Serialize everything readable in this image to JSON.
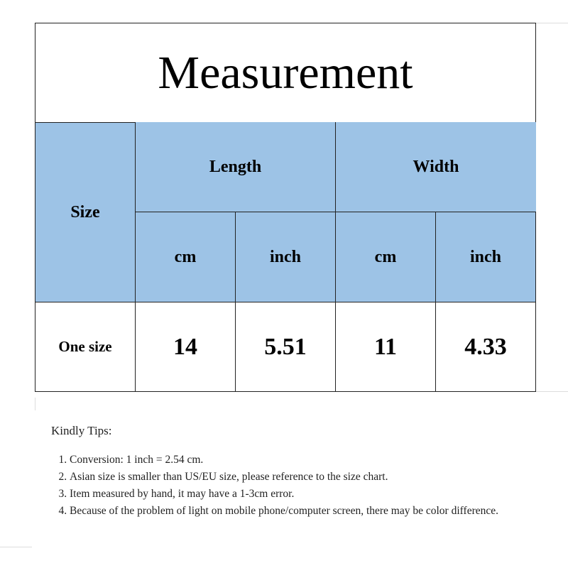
{
  "title": "Measurement",
  "header": {
    "size": "Size",
    "length": "Length",
    "width": "Width",
    "units": [
      "cm",
      "inch",
      "cm",
      "inch"
    ]
  },
  "rows": [
    {
      "size": "One size",
      "length_cm": "14",
      "length_inch": "5.51",
      "width_cm": "11",
      "width_inch": "4.33"
    }
  ],
  "tips": {
    "heading": "Kindly Tips:",
    "items": [
      "Conversion: 1 inch = 2.54 cm.",
      "Asian size is smaller than US/EU size, please reference to the size chart.",
      "Item measured by hand, it may have a 1-3cm error.",
      "Because of the problem of light on mobile phone/computer screen, there may be color difference."
    ]
  },
  "colors": {
    "header_bg": "#9dc3e6"
  }
}
